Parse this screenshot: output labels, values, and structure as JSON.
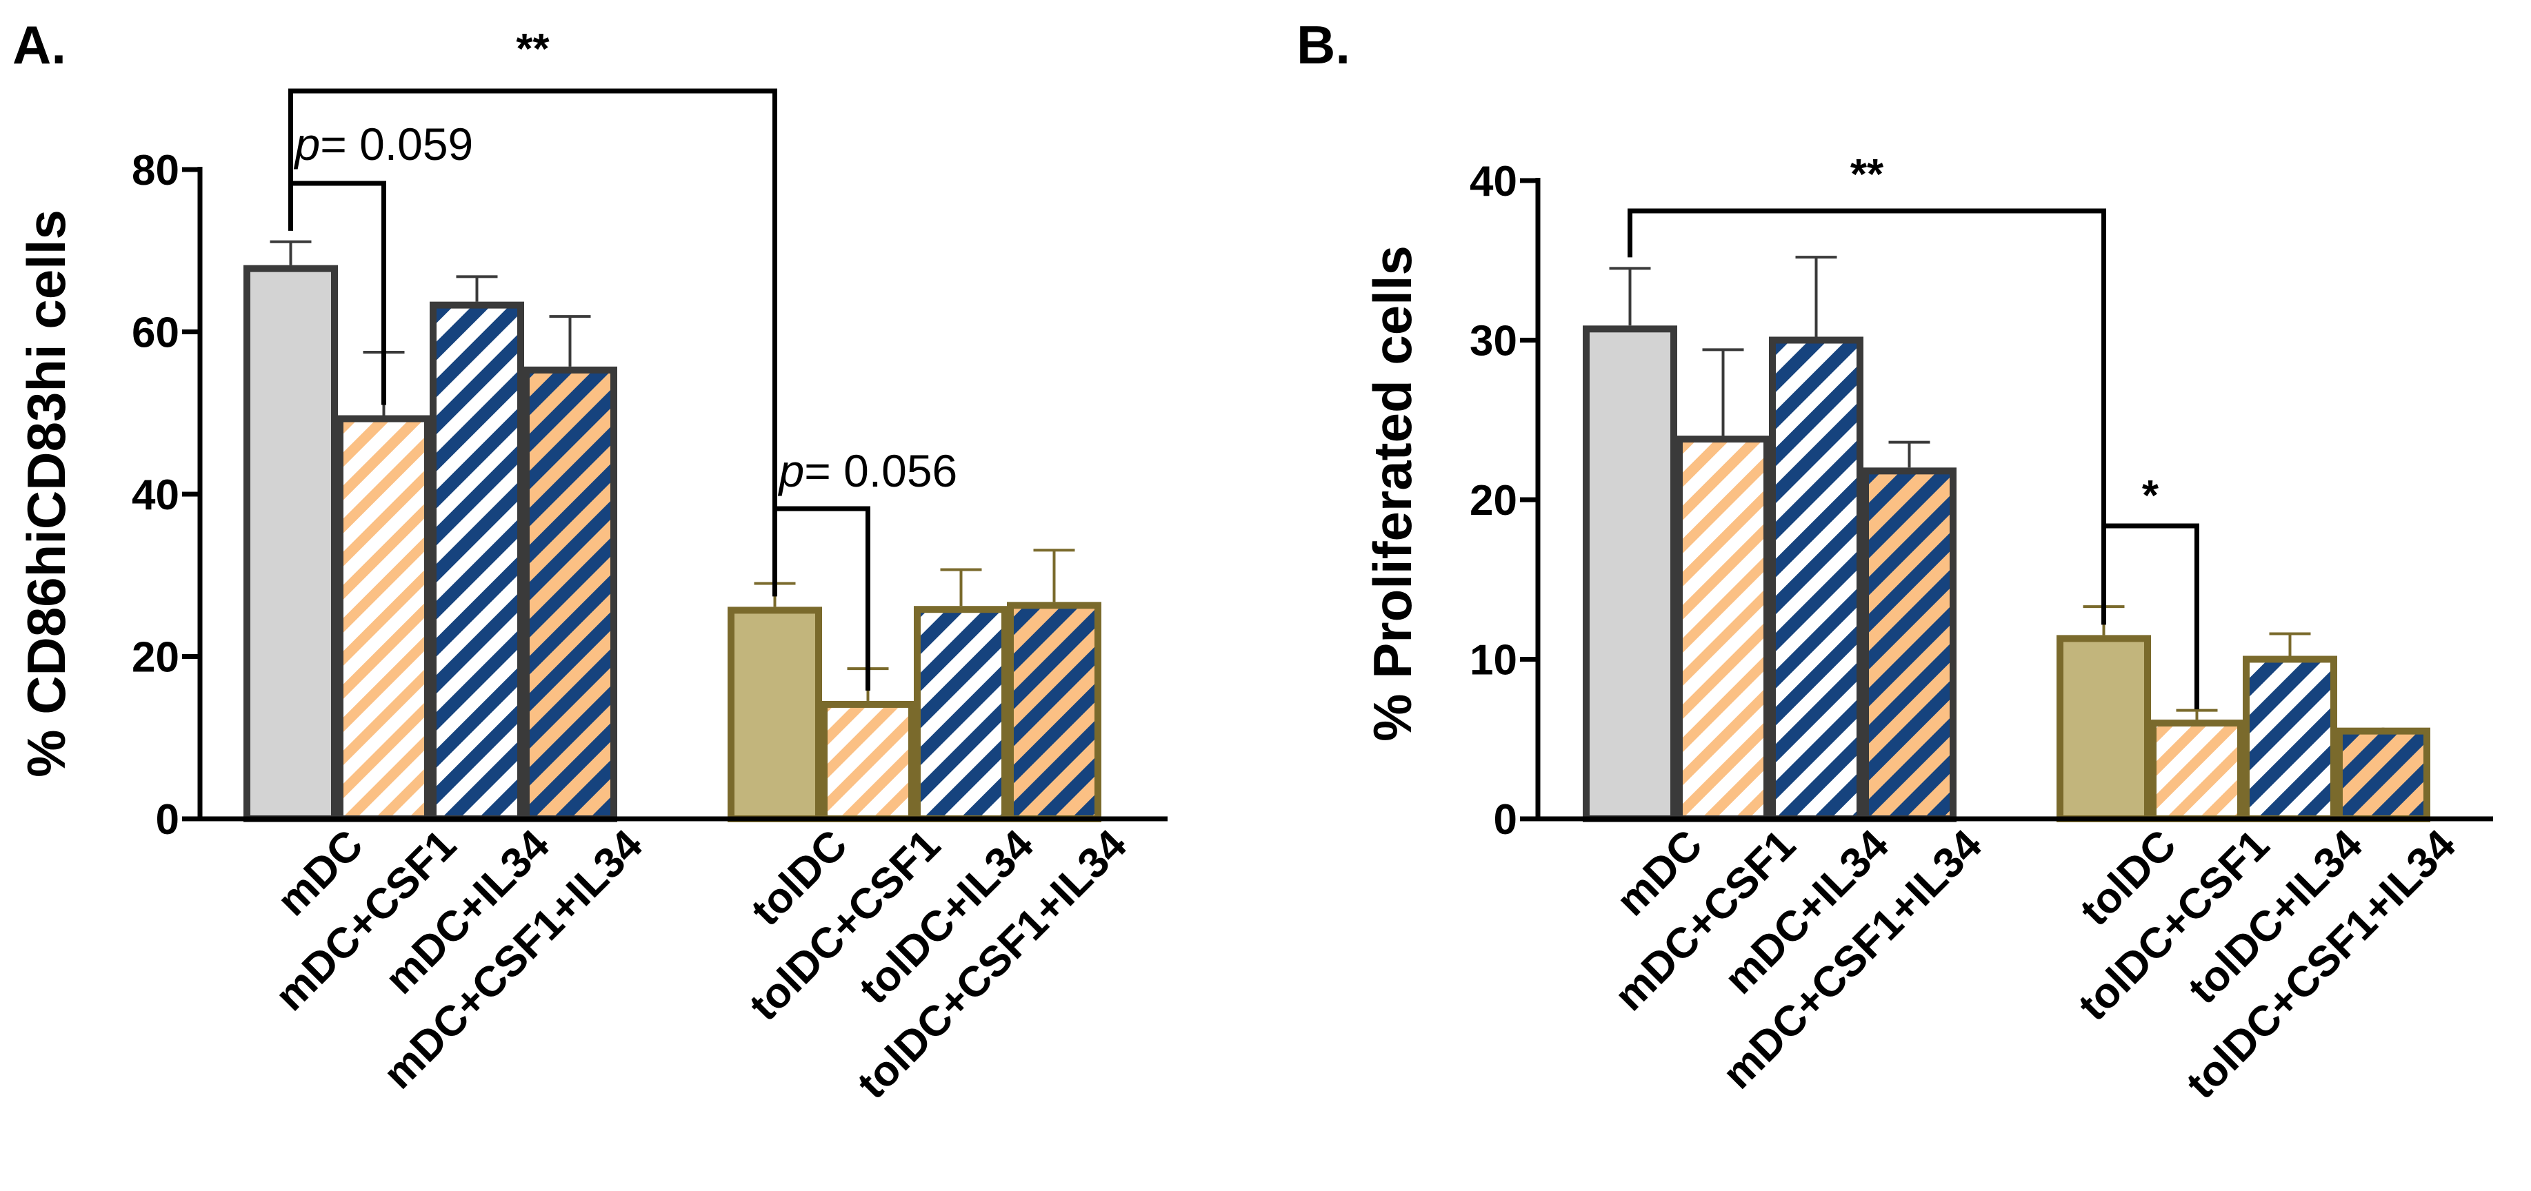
{
  "colors": {
    "axis": "#000000",
    "bracket": "#000000",
    "mdc_fill": "#d3d3d3",
    "mdc_border": "#3a3a3a",
    "toldc_fill": "#c2b57c",
    "toldc_border": "#7a6a2c",
    "orange_stripe": "#fbc084",
    "blue_stripe": "#16437e",
    "white": "#ffffff"
  },
  "chart_data": [
    {
      "type": "bar",
      "panel_label": "A.",
      "ylabel": "% CD86hiCD83hi cells",
      "ylim": [
        0,
        80
      ],
      "yticks": [
        0,
        20,
        40,
        60,
        80
      ],
      "categories": [
        "mDC",
        "mDC+CSF1",
        "mDC+IL34",
        "mDC+CSF1+IL34",
        "tolDC",
        "tolDC+CSF1",
        "tolDC+IL34",
        "tolDC+CSF1+IL34"
      ],
      "values": [
        67.8,
        49.3,
        63.3,
        55.3,
        25.7,
        14.1,
        25.8,
        26.3
      ],
      "errors": [
        3.3,
        8.2,
        3.5,
        6.6,
        3.3,
        4.4,
        4.9,
        6.8
      ],
      "patterns": [
        "solid",
        "orange-white",
        "blue-white",
        "blue-orange",
        "solid",
        "orange-white",
        "blue-white",
        "blue-orange"
      ],
      "groups": [
        "mdc",
        "mdc",
        "mdc",
        "mdc",
        "toldc",
        "toldc",
        "toldc",
        "toldc"
      ],
      "annotations": [
        {
          "type": "bracket",
          "from": 0,
          "to": 4,
          "label": "**"
        },
        {
          "type": "bracket",
          "from": 0,
          "to": 1,
          "label_p": "p",
          "label_rest": "= 0.059"
        },
        {
          "type": "bracket",
          "from": 4,
          "to": 5,
          "label_p": "p",
          "label_rest": "= 0.056"
        }
      ]
    },
    {
      "type": "bar",
      "panel_label": "B.",
      "ylabel": "% Proliferated cells",
      "ylim": [
        0,
        40
      ],
      "yticks": [
        0,
        10,
        20,
        30,
        40
      ],
      "categories": [
        "mDC",
        "mDC+CSF1",
        "mDC+IL34",
        "mDC+CSF1+IL34",
        "tolDC",
        "tolDC+CSF1",
        "tolDC+IL34",
        "tolDC+CSF1+IL34"
      ],
      "values": [
        30.7,
        23.8,
        30.0,
        21.8,
        11.3,
        6.0,
        10.0,
        5.5
      ],
      "errors": [
        3.8,
        5.6,
        5.2,
        1.8,
        2.0,
        0.8,
        1.6,
        0.1
      ],
      "patterns": [
        "solid",
        "orange-white",
        "blue-white",
        "blue-orange",
        "solid",
        "orange-white",
        "blue-white",
        "blue-orange"
      ],
      "groups": [
        "mdc",
        "mdc",
        "mdc",
        "mdc",
        "toldc",
        "toldc",
        "toldc",
        "toldc"
      ],
      "annotations": [
        {
          "type": "bracket",
          "from": 0,
          "to": 4,
          "label": "**"
        },
        {
          "type": "bracket",
          "from": 4,
          "to": 5,
          "label": "*"
        }
      ]
    }
  ]
}
